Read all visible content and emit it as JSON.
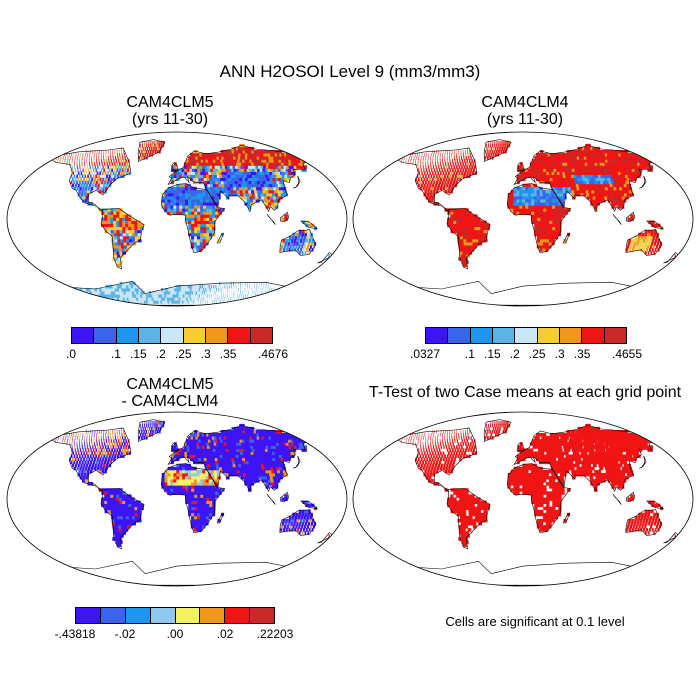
{
  "figure": {
    "title": "ANN H2OSOI Level 9 (mm3/mm3)"
  },
  "panels": [
    {
      "title_line1": "CAM4CLM5",
      "title_line2": "(yrs 11-30)",
      "colorbar": {
        "colors": [
          "#3c14f5",
          "#3c64e8",
          "#1e96f0",
          "#5ab4e6",
          "#c8e6f5",
          "#f5cd32",
          "#f0961e",
          "#f01414",
          "#c82828"
        ],
        "tick_labels": [
          ".0",
          ".1",
          ".15",
          ".2",
          ".25",
          ".3",
          ".35",
          ".4676"
        ],
        "tick_slots": [
          0,
          2,
          3,
          4,
          5,
          6,
          7,
          9
        ]
      }
    },
    {
      "title_line1": "CAM4CLM4",
      "title_line2": "(yrs 11-30)",
      "colorbar": {
        "colors": [
          "#3c14f5",
          "#3c64e8",
          "#1e96f0",
          "#5ab4e6",
          "#c8e6f5",
          "#f5cd32",
          "#f0961e",
          "#f01414",
          "#c82828"
        ],
        "tick_labels": [
          ".0327",
          ".1",
          ".15",
          ".2",
          ".25",
          ".3",
          ".35",
          ".4655"
        ],
        "tick_slots": [
          0,
          2,
          3,
          4,
          5,
          6,
          7,
          9
        ]
      }
    },
    {
      "title_line1": "CAM4CLM5",
      "title_line2": "- CAM4CLM4",
      "colorbar": {
        "colors": [
          "#3c14f5",
          "#3c64e8",
          "#1e96f0",
          "#91c8f0",
          "#f5f064",
          "#f0961e",
          "#f01414",
          "#c82828"
        ],
        "tick_labels": [
          "-.43818",
          "-.02",
          ".00",
          ".02",
          ".22203"
        ],
        "tick_slots": [
          0,
          2,
          4,
          6,
          8
        ]
      }
    },
    {
      "title_line1": "T-Test of two Case means at each grid point",
      "title_line2": "",
      "note": "Cells are significant at 0.1 level"
    }
  ]
}
